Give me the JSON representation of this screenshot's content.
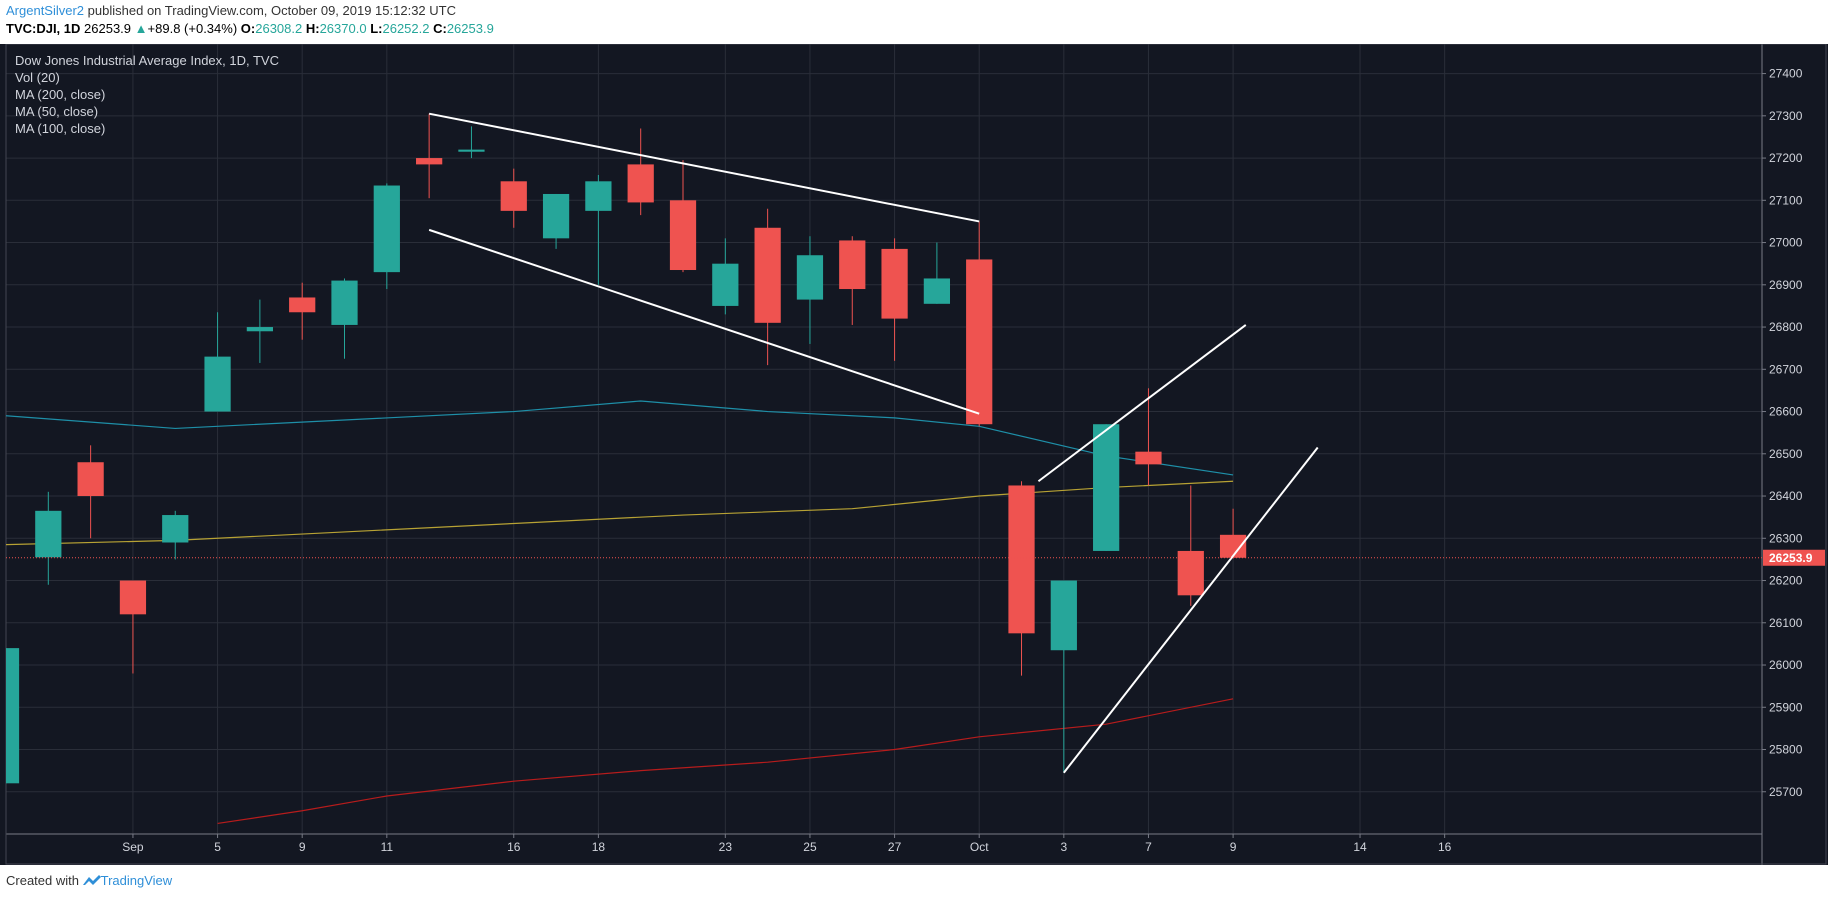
{
  "header": {
    "author": "ArgentSilver2",
    "published": "published on TradingView.com, October 09, 2019 15:12:32 UTC",
    "symbol": "TVC:DJI, 1D",
    "last": "26253.9",
    "change_arrow": "▲",
    "change": "+89.8 (+0.34%)",
    "o_label": "O:",
    "o_value": "26308.2",
    "h_label": "H:",
    "h_value": "26370.0",
    "l_label": "L:",
    "l_value": "26252.2",
    "c_label": "C:",
    "c_value": "26253.9"
  },
  "legend": {
    "title": "Dow Jones Industrial Average Index, 1D, TVC",
    "items": [
      "Vol (20)",
      "MA (200, close)",
      "MA (50, close)",
      "MA (100, close)"
    ]
  },
  "footer": {
    "created_with": "Created with",
    "brand": "TradingView"
  },
  "chart_data": {
    "type": "candlestick",
    "title": "Dow Jones Industrial Average Index, 1D, TVC",
    "colors": {
      "background": "#131722",
      "grid": "#2a2e39",
      "up": "#26a69a",
      "down": "#ef5350",
      "ma50": "#b7a234",
      "ma100": "#1e8fa8",
      "ma200": "#b71c1c",
      "trendline": "#ffffff",
      "last_price": "#ef5350"
    },
    "ylim": [
      25600,
      27470
    ],
    "y_ticks": [
      25700,
      25800,
      25900,
      26000,
      26100,
      26200,
      26300,
      26400,
      26500,
      26600,
      26700,
      26800,
      26900,
      27000,
      27100,
      27200,
      27300,
      27400
    ],
    "x_range": [
      -1,
      40.5
    ],
    "x_ticks": [
      {
        "label": "Sep",
        "x": 2
      },
      {
        "label": "5",
        "x": 4
      },
      {
        "label": "9",
        "x": 6
      },
      {
        "label": "11",
        "x": 8
      },
      {
        "label": "16",
        "x": 11
      },
      {
        "label": "18",
        "x": 13
      },
      {
        "label": "23",
        "x": 16
      },
      {
        "label": "25",
        "x": 18
      },
      {
        "label": "27",
        "x": 20
      },
      {
        "label": "Oct",
        "x": 22
      },
      {
        "label": "3",
        "x": 24
      },
      {
        "label": "7",
        "x": 26
      },
      {
        "label": "9",
        "x": 28
      },
      {
        "label": "14",
        "x": 31
      },
      {
        "label": "16",
        "x": 33
      }
    ],
    "candles": [
      {
        "x": -1,
        "o": 25720,
        "h": 26040,
        "l": 25720,
        "c": 26040
      },
      {
        "x": 0,
        "o": 26255,
        "h": 26410,
        "l": 26190,
        "c": 26365
      },
      {
        "x": 1,
        "o": 26480,
        "h": 26520,
        "l": 26300,
        "c": 26400
      },
      {
        "x": 2,
        "o": 26200,
        "h": 26200,
        "l": 25980,
        "c": 26120
      },
      {
        "x": 3,
        "o": 26290,
        "h": 26365,
        "l": 26250,
        "c": 26355
      },
      {
        "x": 4,
        "o": 26600,
        "h": 26835,
        "l": 26600,
        "c": 26730
      },
      {
        "x": 5,
        "o": 26790,
        "h": 26865,
        "l": 26715,
        "c": 26800
      },
      {
        "x": 6,
        "o": 26870,
        "h": 26905,
        "l": 26770,
        "c": 26835
      },
      {
        "x": 7,
        "o": 26805,
        "h": 26915,
        "l": 26725,
        "c": 26910
      },
      {
        "x": 8,
        "o": 26930,
        "h": 27140,
        "l": 26890,
        "c": 27135
      },
      {
        "x": 9,
        "o": 27200,
        "h": 27305,
        "l": 27105,
        "c": 27185
      },
      {
        "x": 10,
        "o": 27215,
        "h": 27275,
        "l": 27200,
        "c": 27220
      },
      {
        "x": 11,
        "o": 27145,
        "h": 27175,
        "l": 27035,
        "c": 27075
      },
      {
        "x": 12,
        "o": 27010,
        "h": 27115,
        "l": 26985,
        "c": 27115
      },
      {
        "x": 13,
        "o": 27075,
        "h": 27160,
        "l": 26900,
        "c": 27145
      },
      {
        "x": 14,
        "o": 27185,
        "h": 27270,
        "l": 27065,
        "c": 27095
      },
      {
        "x": 15,
        "o": 27100,
        "h": 27195,
        "l": 26930,
        "c": 26935
      },
      {
        "x": 16,
        "o": 26850,
        "h": 27010,
        "l": 26830,
        "c": 26950
      },
      {
        "x": 17,
        "o": 27035,
        "h": 27080,
        "l": 26710,
        "c": 26810
      },
      {
        "x": 18,
        "o": 26865,
        "h": 27015,
        "l": 26760,
        "c": 26970
      },
      {
        "x": 19,
        "o": 27005,
        "h": 27015,
        "l": 26805,
        "c": 26890
      },
      {
        "x": 20,
        "o": 26985,
        "h": 27010,
        "l": 26720,
        "c": 26820
      },
      {
        "x": 21,
        "o": 26855,
        "h": 27000,
        "l": 26855,
        "c": 26915
      },
      {
        "x": 22,
        "o": 26960,
        "h": 27050,
        "l": 26565,
        "c": 26570
      },
      {
        "x": 23,
        "o": 26425,
        "h": 26435,
        "l": 25975,
        "c": 26075
      },
      {
        "x": 24,
        "o": 26035,
        "h": 26200,
        "l": 25745,
        "c": 26200
      },
      {
        "x": 25,
        "o": 26270,
        "h": 26570,
        "l": 26270,
        "c": 26570
      },
      {
        "x": 26,
        "o": 26505,
        "h": 26655,
        "l": 26425,
        "c": 26475
      },
      {
        "x": 27,
        "o": 26270,
        "h": 26425,
        "l": 26140,
        "c": 26165
      },
      {
        "x": 28,
        "o": 26308.2,
        "h": 26370.0,
        "l": 26252.2,
        "c": 26253.9
      }
    ],
    "series": [
      {
        "name": "MA (200, close)",
        "points": [
          [
            -1,
            26285
          ],
          [
            3,
            26295
          ],
          [
            7,
            26315
          ],
          [
            11,
            26335
          ],
          [
            15,
            26355
          ],
          [
            19,
            26370
          ],
          [
            22,
            26400
          ],
          [
            25,
            26420
          ],
          [
            28,
            26435
          ]
        ]
      },
      {
        "name": "MA (50, close)",
        "points": [
          [
            -1,
            26590
          ],
          [
            3,
            26560
          ],
          [
            7,
            26580
          ],
          [
            11,
            26600
          ],
          [
            14,
            26625
          ],
          [
            17,
            26600
          ],
          [
            20,
            26585
          ],
          [
            22,
            26565
          ],
          [
            25,
            26495
          ],
          [
            28,
            26450
          ]
        ]
      },
      {
        "name": "MA (100, close)",
        "points": [
          [
            4,
            25625
          ],
          [
            6,
            25655
          ],
          [
            8,
            25690
          ],
          [
            11,
            25725
          ],
          [
            14,
            25750
          ],
          [
            17,
            25770
          ],
          [
            20,
            25800
          ],
          [
            22,
            25830
          ],
          [
            25,
            25860
          ],
          [
            28,
            25920
          ]
        ]
      }
    ],
    "trendlines": [
      {
        "from": [
          9,
          27305
        ],
        "to": [
          22,
          27050
        ]
      },
      {
        "from": [
          9,
          27030
        ],
        "to": [
          22,
          26595
        ]
      },
      {
        "from": [
          23.4,
          26435
        ],
        "to": [
          28.3,
          26805
        ]
      },
      {
        "from": [
          24,
          25745
        ],
        "to": [
          30,
          26515
        ]
      }
    ],
    "last_price": 26253.9,
    "last_price_label": "26253.9"
  }
}
